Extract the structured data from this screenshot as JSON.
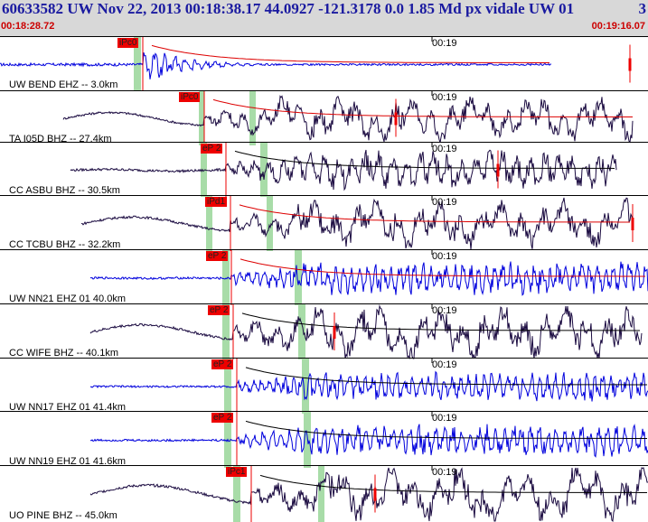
{
  "header": {
    "title": "60633582 UW Nov 22, 2013 00:18:38.17    44.0927 -121.3178  0.0 1.85 Md px vidale UW 01",
    "end_number": "3",
    "time_start": "00:18:28.72",
    "time_end": "00:19:16.07"
  },
  "colors": {
    "background": "#ffffff",
    "header_bg": "#d8d8d8",
    "header_text": "#1a1aa0",
    "time_text": "#cc0000",
    "trace_blue": "#0000dd",
    "trace_dark": "#1a0a40",
    "pick_red": "#ee0000",
    "window_green": "#a8dca8",
    "coda_red": "#dd0000",
    "coda_black": "#000000"
  },
  "panels": [
    {
      "label": "UW BEND EHZ -- 3.0km",
      "pick": "iPc0",
      "tick": "00:19",
      "trace_color": "blue"
    },
    {
      "label": "TA I05D BHZ -- 27.4km",
      "pick": "iPc0",
      "tick": "00:19",
      "trace_color": "dark"
    },
    {
      "label": "CC ASBU BHZ -- 30.5km",
      "pick": "eP 2",
      "tick": "00:19",
      "trace_color": "dark"
    },
    {
      "label": "CC TCBU BHZ -- 32.2km",
      "pick": "iPd1",
      "tick": "00:19",
      "trace_color": "dark"
    },
    {
      "label": "UW NN21 EHZ 01 40.0km",
      "pick": "eP 2",
      "tick": "00:19",
      "trace_color": "blue"
    },
    {
      "label": "CC WIFE BHZ -- 40.1km",
      "pick": "eP 2",
      "tick": "00:19",
      "trace_color": "dark"
    },
    {
      "label": "UW NN17 EHZ 01 41.4km",
      "pick": "eP 2",
      "tick": "00:19",
      "trace_color": "blue"
    },
    {
      "label": "UW NN19 EHZ 01 41.6km",
      "pick": "eP 2",
      "tick": "00:19",
      "trace_color": "blue"
    },
    {
      "label": "UO PINE BHZ -- 45.0km",
      "pick": "iPc1",
      "tick": "00:19",
      "trace_color": "dark"
    }
  ]
}
